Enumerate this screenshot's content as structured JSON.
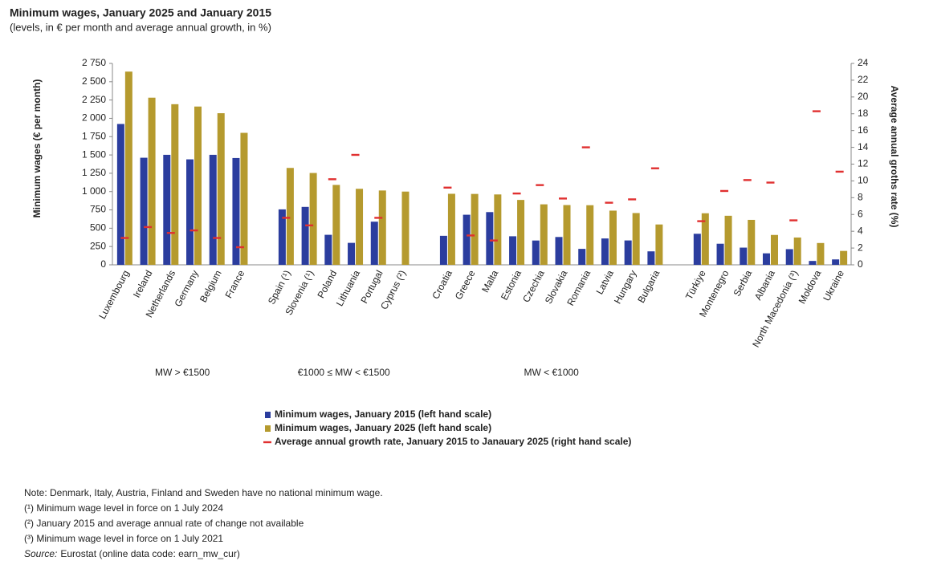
{
  "chart_data": {
    "type": "bar",
    "title": "Minimum wages, January 2025 and January 2015",
    "subtitle": "(levels, in € per month and average annual growth, in %)",
    "y_label": "Minimum wages (€ per month)",
    "y2_label": "Average annual groths rate (%)",
    "categories": [
      "Luxembourg",
      "Ireland",
      "Netherlands",
      "Germany",
      "Belgium",
      "France",
      null,
      "Spain (¹)",
      "Slovenia (¹)",
      "Poland",
      "Lithuania",
      "Portugal",
      "Cyprus (²)",
      null,
      "Croatia",
      "Greece",
      "Malta",
      "Estonia",
      "Czechia",
      "Slovakia",
      "Romania",
      "Latvia",
      "Hungary",
      "Bulgaria",
      null,
      "Türkiye",
      "Montenegro",
      "Serbia",
      "Albania",
      "North Macedonia (³)",
      "Moldova",
      "Ukraine"
    ],
    "group_labels": [
      "MW > €1500",
      "€1000 ≤ MW < €1500",
      "MW < €1000"
    ],
    "series": [
      {
        "name": "Minimum wages, January 2015 (left hand scale)",
        "color": "#2b3d9e",
        "mark": "bar",
        "values": [
          1923,
          1462,
          1502,
          1440,
          1502,
          1458,
          null,
          757,
          791,
          410,
          300,
          589,
          null,
          null,
          396,
          684,
          720,
          390,
          332,
          380,
          218,
          360,
          333,
          184,
          null,
          424,
          288,
          235,
          157,
          214,
          53,
          74
        ]
      },
      {
        "name": "Minimum wages, January 2025 (left hand scale)",
        "color": "#b59a2e",
        "mark": "bar",
        "values": [
          2638,
          2282,
          2193,
          2161,
          2070,
          1802,
          null,
          1323,
          1254,
          1091,
          1038,
          1015,
          1000,
          null,
          970,
          968,
          961,
          886,
          826,
          816,
          814,
          740,
          707,
          551,
          null,
          704,
          670,
          614,
          408,
          373,
          298,
          190
        ]
      },
      {
        "name": "Average annual growth rate, January 2015 to Janauary 2025 (right hand scale)",
        "color": "#e03030",
        "mark": "dash",
        "axis": "y2",
        "values": [
          3.2,
          4.5,
          3.8,
          4.1,
          3.2,
          2.1,
          null,
          5.6,
          4.7,
          10.2,
          13.1,
          5.6,
          null,
          null,
          9.2,
          3.5,
          2.9,
          8.5,
          9.5,
          7.9,
          14.0,
          7.4,
          7.8,
          11.5,
          null,
          5.2,
          8.8,
          10.1,
          9.8,
          5.3,
          18.3,
          11.1
        ]
      }
    ],
    "ylim": [
      0,
      2750
    ],
    "yticks": [
      0,
      250,
      500,
      750,
      {
        "value": 1000,
        "label": "1 000"
      },
      {
        "value": 1250,
        "label": "1 250"
      },
      {
        "value": 1500,
        "label": "1 500"
      },
      {
        "value": 1750,
        "label": "1 750"
      },
      {
        "value": 2000,
        "label": "2 000"
      },
      {
        "value": 2250,
        "label": "2 250"
      },
      {
        "value": 2500,
        "label": "2 500"
      },
      {
        "value": 2750,
        "label": "2 750"
      }
    ],
    "y2lim": [
      0,
      24
    ],
    "y2ticks": [
      0,
      2,
      4,
      6,
      8,
      10,
      12,
      14,
      16,
      18,
      20,
      22,
      24
    ],
    "grid": false,
    "notes": [
      "Note: Denmark, Italy, Austria, Finland and Sweden have no national minimum wage.",
      "(¹) Minimum wage level in force on 1 July 2024",
      "(²) January 2015 and average annual rate of change not available",
      "(³) Minimum wage level in force on 1 July 2021"
    ],
    "source_label": "Source:",
    "source": "Eurostat (online data code: earn_mw_cur)"
  }
}
